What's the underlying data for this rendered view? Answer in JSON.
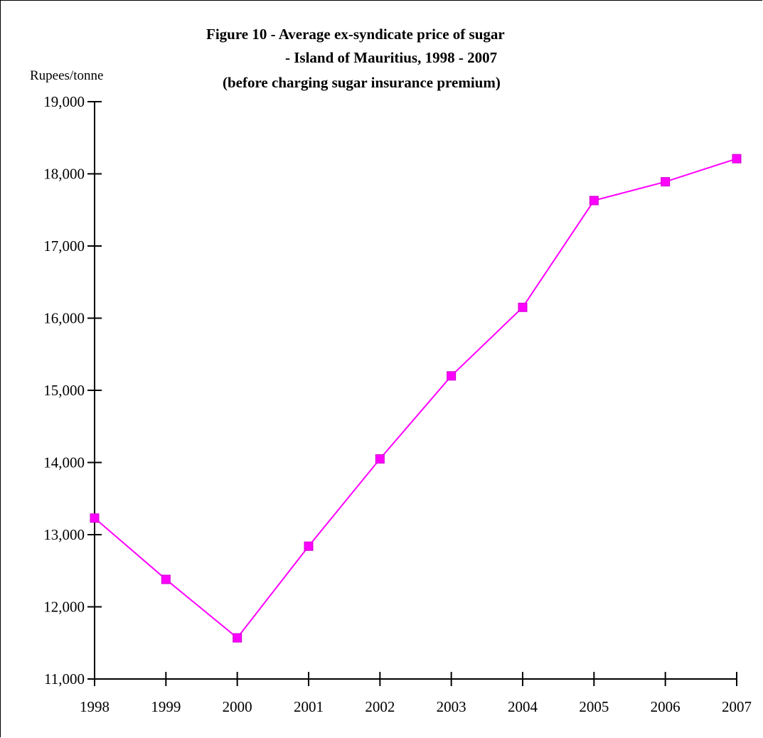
{
  "chart_data": {
    "type": "line",
    "title_lines": [
      "Figure 10 - Average ex-syndicate price of sugar",
      "- Island of Mauritius, 1998 - 2007",
      "(before charging sugar insurance premium)"
    ],
    "ylabel": "Rupees/tonne",
    "xlabel": "",
    "x": [
      "1998",
      "1999",
      "2000",
      "2001",
      "2002",
      "2003",
      "2004",
      "2005",
      "2006",
      "2007"
    ],
    "series": [
      {
        "values": [
          13230,
          12380,
          11570,
          12840,
          14050,
          15200,
          16150,
          17630,
          17890,
          18210
        ],
        "color": "#ff00ff"
      }
    ],
    "ylim": [
      11000,
      19000
    ],
    "yticks": [
      11000,
      12000,
      13000,
      14000,
      15000,
      16000,
      17000,
      18000,
      19000
    ],
    "ytick_labels": [
      "11,000",
      "12,000",
      "13,000",
      "14,000",
      "15,000",
      "16,000",
      "17,000",
      "18,000",
      "19,000"
    ],
    "grid": false,
    "legend": "none"
  }
}
